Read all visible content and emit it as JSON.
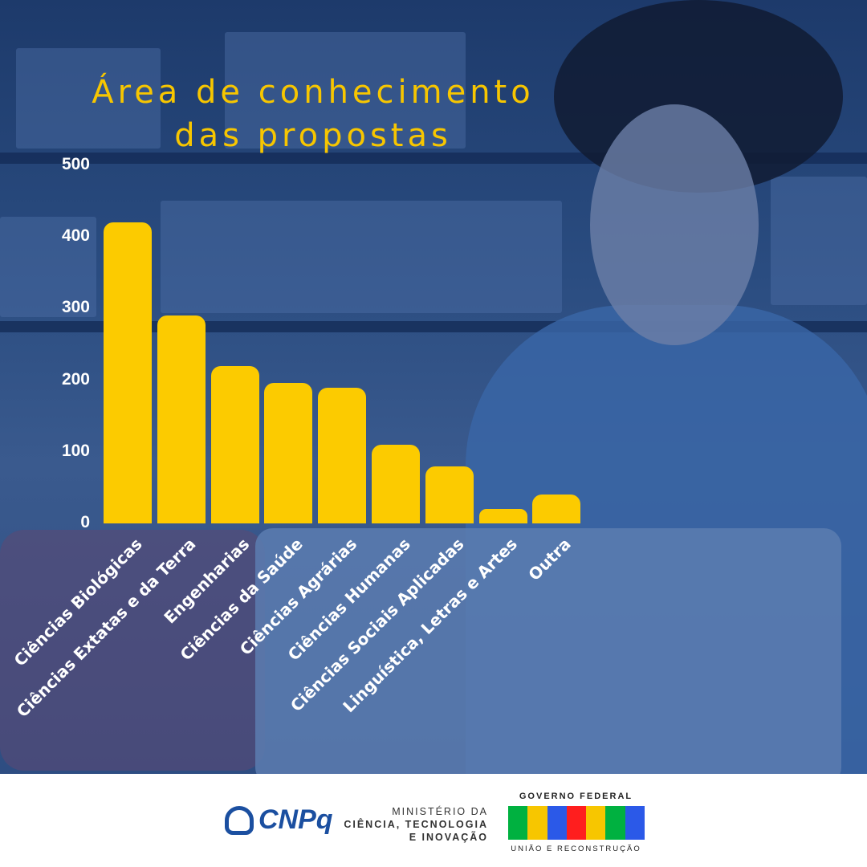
{
  "title": {
    "line1": "Área de conhecimento",
    "line2": "das propostas"
  },
  "chart_data": {
    "type": "bar",
    "title": "Área de conhecimento das propostas",
    "categories": [
      "Ciências Biológicas",
      "Ciências Extatas e da Terra",
      "Engenharias",
      "Ciências da Saúde",
      "Ciências Agrárias",
      "Ciências Humanas",
      "Ciências Sociais Aplicadas",
      "Linguística, Letras e Artes",
      "Outra"
    ],
    "values": [
      420,
      290,
      220,
      196,
      190,
      110,
      80,
      20,
      40
    ],
    "yticks": [
      "0",
      "100",
      "200",
      "300",
      "400",
      "500"
    ],
    "ylim": [
      0,
      500
    ],
    "xlabel": "",
    "ylabel": "",
    "grid": false,
    "bar_color": "#fccb00"
  },
  "footer": {
    "cnpq": "CNPq",
    "ministry": [
      "MINISTÉRIO DA",
      "CIÊNCIA, TECNOLOGIA",
      "E INOVAÇÃO"
    ],
    "gov_top": "GOVERNO FEDERAL",
    "gov_logo": "BRASIL",
    "gov_bottom": "UNIÃO E RECONSTRUÇÃO"
  }
}
